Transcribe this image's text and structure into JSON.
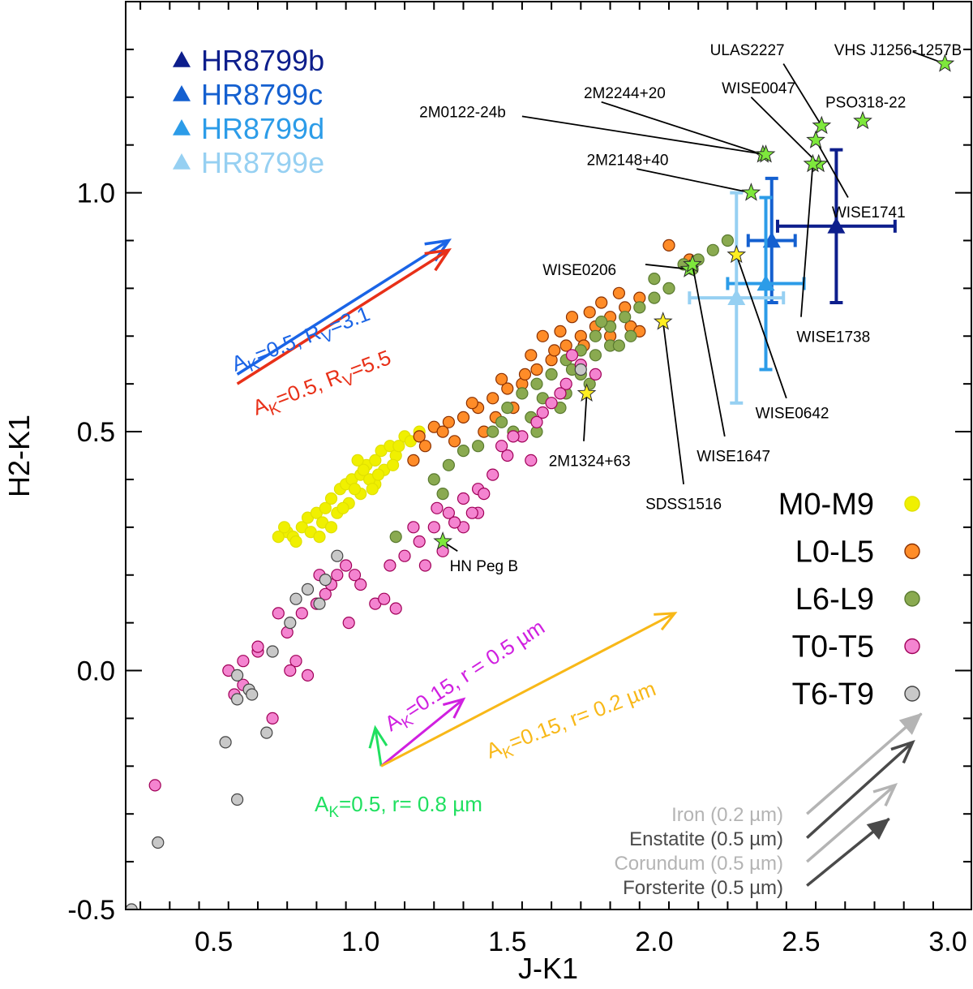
{
  "chart_data": {
    "type": "scatter",
    "xlabel": "J-K1",
    "ylabel": "H2-K1",
    "xlim": [
      0.2,
      3.08
    ],
    "ylim": [
      -0.5,
      1.4
    ],
    "xticks": [
      {
        "v": 0.5,
        "label": "0.5"
      },
      {
        "v": 1.0,
        "label": "1.0"
      },
      {
        "v": 1.5,
        "label": "1.5"
      },
      {
        "v": 2.0,
        "label": "2.0"
      },
      {
        "v": 2.5,
        "label": "2.5"
      },
      {
        "v": 3.0,
        "label": "3.0"
      }
    ],
    "yticks": [
      {
        "v": -0.5,
        "label": "-0.5"
      },
      {
        "v": 0.0,
        "label": "0.0"
      },
      {
        "v": 0.5,
        "label": "0.5"
      },
      {
        "v": 1.0,
        "label": "1.0"
      }
    ],
    "spectral_groups": [
      {
        "name": "M0-M9",
        "color": "#f0f000",
        "stroke": "#e0e000",
        "points": [
          [
            0.75,
            0.29
          ],
          [
            0.77,
            0.28
          ],
          [
            0.8,
            0.3
          ],
          [
            0.82,
            0.32
          ],
          [
            0.85,
            0.33
          ],
          [
            0.88,
            0.34
          ],
          [
            0.9,
            0.36
          ],
          [
            0.93,
            0.38
          ],
          [
            0.95,
            0.39
          ],
          [
            0.97,
            0.4
          ],
          [
            1.0,
            0.41
          ],
          [
            1.02,
            0.43
          ],
          [
            1.05,
            0.44
          ],
          [
            1.07,
            0.46
          ],
          [
            1.1,
            0.47
          ],
          [
            1.12,
            0.45
          ],
          [
            1.0,
            0.37
          ],
          [
            0.96,
            0.35
          ],
          [
            0.92,
            0.33
          ],
          [
            0.87,
            0.31
          ],
          [
            0.83,
            0.29
          ],
          [
            1.05,
            0.39
          ],
          [
            1.08,
            0.42
          ],
          [
            1.15,
            0.49
          ],
          [
            1.2,
            0.5
          ],
          [
            1.13,
            0.47
          ],
          [
            1.03,
            0.4
          ],
          [
            0.98,
            0.38
          ],
          [
            0.78,
            0.27
          ],
          [
            0.86,
            0.28
          ],
          [
            0.94,
            0.34
          ],
          [
            1.01,
            0.42
          ],
          [
            1.06,
            0.41
          ],
          [
            0.72,
            0.28
          ],
          [
            0.74,
            0.3
          ],
          [
            1.11,
            0.43
          ],
          [
            1.17,
            0.48
          ],
          [
            0.9,
            0.3
          ],
          [
            1.04,
            0.38
          ],
          [
            0.99,
            0.44
          ]
        ]
      },
      {
        "name": "L0-L5",
        "color": "#ff8c28",
        "stroke": "#8a3000",
        "points": [
          [
            1.2,
            0.49
          ],
          [
            1.25,
            0.51
          ],
          [
            1.3,
            0.52
          ],
          [
            1.35,
            0.53
          ],
          [
            1.4,
            0.55
          ],
          [
            1.45,
            0.57
          ],
          [
            1.5,
            0.59
          ],
          [
            1.55,
            0.6
          ],
          [
            1.6,
            0.63
          ],
          [
            1.65,
            0.65
          ],
          [
            1.7,
            0.68
          ],
          [
            1.75,
            0.7
          ],
          [
            1.8,
            0.72
          ],
          [
            1.85,
            0.74
          ],
          [
            1.9,
            0.76
          ],
          [
            1.95,
            0.78
          ],
          [
            1.88,
            0.79
          ],
          [
            1.78,
            0.75
          ],
          [
            1.68,
            0.71
          ],
          [
            1.58,
            0.66
          ],
          [
            1.48,
            0.61
          ],
          [
            1.38,
            0.56
          ],
          [
            1.28,
            0.5
          ],
          [
            1.22,
            0.47
          ],
          [
            1.62,
            0.7
          ],
          [
            1.72,
            0.74
          ],
          [
            1.82,
            0.77
          ],
          [
            1.92,
            0.72
          ],
          [
            2.05,
            0.89
          ],
          [
            2.12,
            0.86
          ],
          [
            1.95,
            0.71
          ],
          [
            1.85,
            0.7
          ],
          [
            1.52,
            0.55
          ],
          [
            1.42,
            0.5
          ],
          [
            1.32,
            0.48
          ],
          [
            1.66,
            0.67
          ],
          [
            1.56,
            0.62
          ],
          [
            1.18,
            0.44
          ],
          [
            1.46,
            0.53
          ],
          [
            1.76,
            0.68
          ]
        ]
      },
      {
        "name": "L6-L9",
        "color": "#8aaa50",
        "stroke": "#5a7a30",
        "points": [
          [
            1.5,
            0.55
          ],
          [
            1.55,
            0.58
          ],
          [
            1.6,
            0.6
          ],
          [
            1.65,
            0.62
          ],
          [
            1.7,
            0.65
          ],
          [
            1.75,
            0.67
          ],
          [
            1.8,
            0.7
          ],
          [
            1.85,
            0.72
          ],
          [
            1.9,
            0.74
          ],
          [
            1.95,
            0.76
          ],
          [
            2.0,
            0.78
          ],
          [
            2.05,
            0.8
          ],
          [
            2.1,
            0.85
          ],
          [
            2.15,
            0.86
          ],
          [
            2.2,
            0.88
          ],
          [
            2.25,
            0.9
          ],
          [
            1.7,
            0.58
          ],
          [
            1.75,
            0.62
          ],
          [
            1.8,
            0.66
          ],
          [
            1.85,
            0.68
          ],
          [
            1.62,
            0.57
          ],
          [
            1.58,
            0.53
          ],
          [
            1.45,
            0.5
          ],
          [
            1.4,
            0.47
          ],
          [
            1.35,
            0.46
          ],
          [
            1.3,
            0.43
          ],
          [
            1.25,
            0.4
          ],
          [
            1.28,
            0.37
          ],
          [
            1.12,
            0.28
          ],
          [
            1.6,
            0.5
          ],
          [
            1.68,
            0.55
          ],
          [
            1.78,
            0.6
          ],
          [
            1.88,
            0.68
          ],
          [
            2.0,
            0.82
          ],
          [
            1.92,
            0.7
          ],
          [
            1.72,
            0.63
          ],
          [
            1.48,
            0.52
          ],
          [
            1.52,
            0.5
          ],
          [
            1.82,
            0.73
          ],
          [
            2.13,
            0.84
          ]
        ]
      },
      {
        "name": "T0-T5",
        "color": "#f484d0",
        "stroke": "#a00058",
        "points": [
          [
            0.55,
            0.0
          ],
          [
            0.57,
            -0.05
          ],
          [
            0.6,
            0.02
          ],
          [
            0.65,
            0.04
          ],
          [
            0.7,
            -0.1
          ],
          [
            0.75,
            0.08
          ],
          [
            0.78,
            0.02
          ],
          [
            0.8,
            0.12
          ],
          [
            0.82,
            -0.01
          ],
          [
            0.85,
            0.14
          ],
          [
            0.88,
            0.16
          ],
          [
            0.9,
            0.18
          ],
          [
            0.92,
            0.2
          ],
          [
            0.95,
            0.22
          ],
          [
            0.98,
            0.2
          ],
          [
            1.0,
            0.18
          ],
          [
            1.05,
            0.14
          ],
          [
            1.08,
            0.15
          ],
          [
            1.1,
            0.22
          ],
          [
            1.15,
            0.24
          ],
          [
            1.2,
            0.27
          ],
          [
            1.25,
            0.3
          ],
          [
            1.3,
            0.33
          ],
          [
            1.35,
            0.36
          ],
          [
            1.4,
            0.38
          ],
          [
            1.45,
            0.41
          ],
          [
            1.5,
            0.45
          ],
          [
            1.55,
            0.49
          ],
          [
            1.6,
            0.52
          ],
          [
            1.65,
            0.56
          ],
          [
            1.7,
            0.6
          ],
          [
            1.75,
            0.64
          ],
          [
            1.8,
            0.62
          ],
          [
            1.35,
            0.3
          ],
          [
            1.4,
            0.33
          ],
          [
            1.22,
            0.22
          ],
          [
            1.18,
            0.3
          ],
          [
            0.3,
            -0.24
          ],
          [
            0.6,
            -0.03
          ],
          [
            0.65,
            0.05
          ],
          [
            0.72,
            0.12
          ],
          [
            0.76,
            0.0
          ],
          [
            0.86,
            0.2
          ],
          [
            0.96,
            0.1
          ],
          [
            1.12,
            0.13
          ],
          [
            1.28,
            0.25
          ],
          [
            1.42,
            0.37
          ],
          [
            1.48,
            0.47
          ],
          [
            1.52,
            0.49
          ],
          [
            1.62,
            0.54
          ],
          [
            1.68,
            0.58
          ],
          [
            1.38,
            0.33
          ],
          [
            1.32,
            0.31
          ],
          [
            1.26,
            0.34
          ],
          [
            1.58,
            0.44
          ],
          [
            1.72,
            0.66
          ]
        ]
      },
      {
        "name": "T6-T9",
        "color": "#c8c8c8",
        "stroke": "#444444",
        "points": [
          [
            0.22,
            -0.5
          ],
          [
            0.31,
            -0.36
          ],
          [
            0.54,
            -0.15
          ],
          [
            0.58,
            -0.27
          ],
          [
            0.58,
            -0.06
          ],
          [
            0.58,
            -0.01
          ],
          [
            0.62,
            -0.04
          ],
          [
            0.63,
            -0.05
          ],
          [
            0.68,
            -0.13
          ],
          [
            0.7,
            0.04
          ],
          [
            0.76,
            0.1
          ],
          [
            0.78,
            0.15
          ],
          [
            0.82,
            0.17
          ],
          [
            0.86,
            0.14
          ],
          [
            0.88,
            0.19
          ],
          [
            0.92,
            0.24
          ],
          [
            1.75,
            0.63
          ]
        ]
      }
    ],
    "named_stars": [
      {
        "name": "VHS J1256-1257B",
        "x": 2.99,
        "y": 1.27,
        "color": "#7ee83c",
        "lx": 2.83,
        "ly": 1.3,
        "anchor": "middle",
        "ex": 2.88,
        "ey": 1.295
      },
      {
        "name": "ULAS2227",
        "x": 2.57,
        "y": 1.14,
        "color": "#7ee83c",
        "lx": 2.19,
        "ly": 1.3,
        "anchor": "start",
        "ex": 2.44,
        "ey": 1.27
      },
      {
        "name": "PSO318-22",
        "x": 2.71,
        "y": 1.15,
        "color": "#7ee83c",
        "lx": 2.72,
        "ly": 1.19,
        "anchor": "middle",
        "ex": null,
        "ey": null
      },
      {
        "name": "WISE0047",
        "x": 2.56,
        "y": 1.06,
        "color": "#7ee83c",
        "lx": 2.23,
        "ly": 1.22,
        "anchor": "start",
        "ex": 2.33,
        "ey": 1.2
      },
      {
        "name": "2M2244+20",
        "x": 2.37,
        "y": 1.08,
        "color": "#7ee83c",
        "lx": 1.76,
        "ly": 1.21,
        "anchor": "start",
        "ex": 1.82,
        "ey": 1.19
      },
      {
        "name": "2M0122-24b",
        "x": 2.38,
        "y": 1.08,
        "color": "#7ee83c",
        "lx": 1.2,
        "ly": 1.17,
        "anchor": "start",
        "ex": 1.55,
        "ey": 1.16
      },
      {
        "name": "2M2148+40",
        "x": 2.33,
        "y": 1.0,
        "color": "#7ee83c",
        "lx": 1.77,
        "ly": 1.07,
        "anchor": "start",
        "ex": 1.94,
        "ey": 1.05
      },
      {
        "name": "WISE1741",
        "x": 2.55,
        "y": 1.11,
        "color": "#7ee83c",
        "lx": 2.73,
        "ly": 0.96,
        "anchor": "middle",
        "ex": 2.66,
        "ey": 0.99
      },
      {
        "name": "WISE1738",
        "x": 2.54,
        "y": 1.06,
        "color": "#7ee83c",
        "lx": 2.61,
        "ly": 0.7,
        "anchor": "middle",
        "ex": 2.5,
        "ey": 0.74
      },
      {
        "name": "WISE0206",
        "x": 2.12,
        "y": 0.84,
        "color": "#7ee83c",
        "lx": 1.62,
        "ly": 0.84,
        "anchor": "start",
        "ex": 1.97,
        "ey": 0.85
      },
      {
        "name": "WISE0642",
        "x": 2.28,
        "y": 0.87,
        "color": "#ffee22",
        "lx": 2.47,
        "ly": 0.54,
        "anchor": "middle",
        "ex": 2.45,
        "ey": 0.57
      },
      {
        "name": "WISE1647",
        "x": 2.13,
        "y": 0.85,
        "color": "#7ee83c",
        "lx": 2.27,
        "ly": 0.45,
        "anchor": "middle",
        "ex": 2.24,
        "ey": 0.49
      },
      {
        "name": "SDSS1516",
        "x": 2.03,
        "y": 0.73,
        "color": "#ffee22",
        "lx": 2.1,
        "ly": 0.35,
        "anchor": "middle",
        "ex": 2.1,
        "ey": 0.39
      },
      {
        "name": "2M1324+63",
        "x": 1.77,
        "y": 0.58,
        "color": "#ffee22",
        "lx": 1.78,
        "ly": 0.44,
        "anchor": "middle",
        "ex": 1.76,
        "ey": 0.48
      },
      {
        "name": "HN Peg B",
        "x": 1.28,
        "y": 0.27,
        "color": "#7ee83c",
        "lx": 1.42,
        "ly": 0.22,
        "anchor": "middle",
        "ex": 1.33,
        "ey": 0.25
      }
    ],
    "hr8799_planets": [
      {
        "name": "HR8799b",
        "x": 2.62,
        "y": 0.93,
        "xerr": 0.2,
        "yerr": 0.16,
        "color": "#0d1e8c"
      },
      {
        "name": "HR8799c",
        "x": 2.4,
        "y": 0.9,
        "xerr": 0.08,
        "yerr": 0.13,
        "color": "#1460d0"
      },
      {
        "name": "HR8799d",
        "x": 2.38,
        "y": 0.81,
        "xerr": 0.13,
        "yerr": 0.18,
        "color": "#2c9ce8"
      },
      {
        "name": "HR8799e",
        "x": 2.28,
        "y": 0.78,
        "xerr": 0.16,
        "yerr": 0.22,
        "color": "#96d0f2"
      }
    ],
    "extinction_vectors": [
      {
        "label": "A_K=0.5, R_V=3.1",
        "color": "#1a64e6",
        "x0": 0.58,
        "y0": 0.62,
        "x1": 1.3,
        "y1": 0.9
      },
      {
        "label": "A_K=0.5, R_V=5.5",
        "color": "#e83018",
        "x0": 0.58,
        "y0": 0.6,
        "x1": 1.3,
        "y1": 0.88
      }
    ],
    "dust_vectors": [
      {
        "label": "A_K=0.5, r= 0.8 µm",
        "color": "#20e060",
        "x0": 1.07,
        "y0": -0.2,
        "x1": 1.05,
        "y1": -0.12
      },
      {
        "label": "A_K=0.15, r = 0.5 µm",
        "color": "#d020e0",
        "x0": 1.07,
        "y0": -0.2,
        "x1": 1.35,
        "y1": -0.06
      },
      {
        "label": "A_K=0.15, r= 0.2 µm",
        "color": "#f8b818",
        "x0": 1.07,
        "y0": -0.2,
        "x1": 2.07,
        "y1": 0.12
      }
    ],
    "cloud_vectors": [
      {
        "label": "Iron (0.2 µm)",
        "color": "#b4b4b4",
        "x0": 2.52,
        "y0": -0.3,
        "x1": 2.91,
        "y1": -0.09
      },
      {
        "label": "Enstatite (0.5 µm)",
        "color": "#4a4a4a",
        "x0": 2.52,
        "y0": -0.35,
        "x1": 2.88,
        "y1": -0.15
      },
      {
        "label": "Corundum (0.5 µm)",
        "color": "#b4b4b4",
        "x0": 2.52,
        "y0": -0.4,
        "x1": 2.82,
        "y1": -0.24
      },
      {
        "label": "Forsterite (0.5 µm)",
        "color": "#4a4a4a",
        "x0": 2.52,
        "y0": -0.45,
        "x1": 2.8,
        "y1": -0.31
      }
    ]
  },
  "ui": {
    "xlabel": "J-K1",
    "ylabel": "H2-K1",
    "legend_planets": [
      "HR8799b",
      "HR8799c",
      "HR8799d",
      "HR8799e"
    ],
    "legend_types": [
      "M0-M9",
      "L0-L5",
      "L6-L9",
      "T0-T5",
      "T6-T9"
    ],
    "cloud_labels": [
      "Iron (0.2 µm)",
      "Enstatite (0.5 µm)",
      "Corundum (0.5 µm)",
      "Forsterite (0.5 µm)"
    ]
  }
}
